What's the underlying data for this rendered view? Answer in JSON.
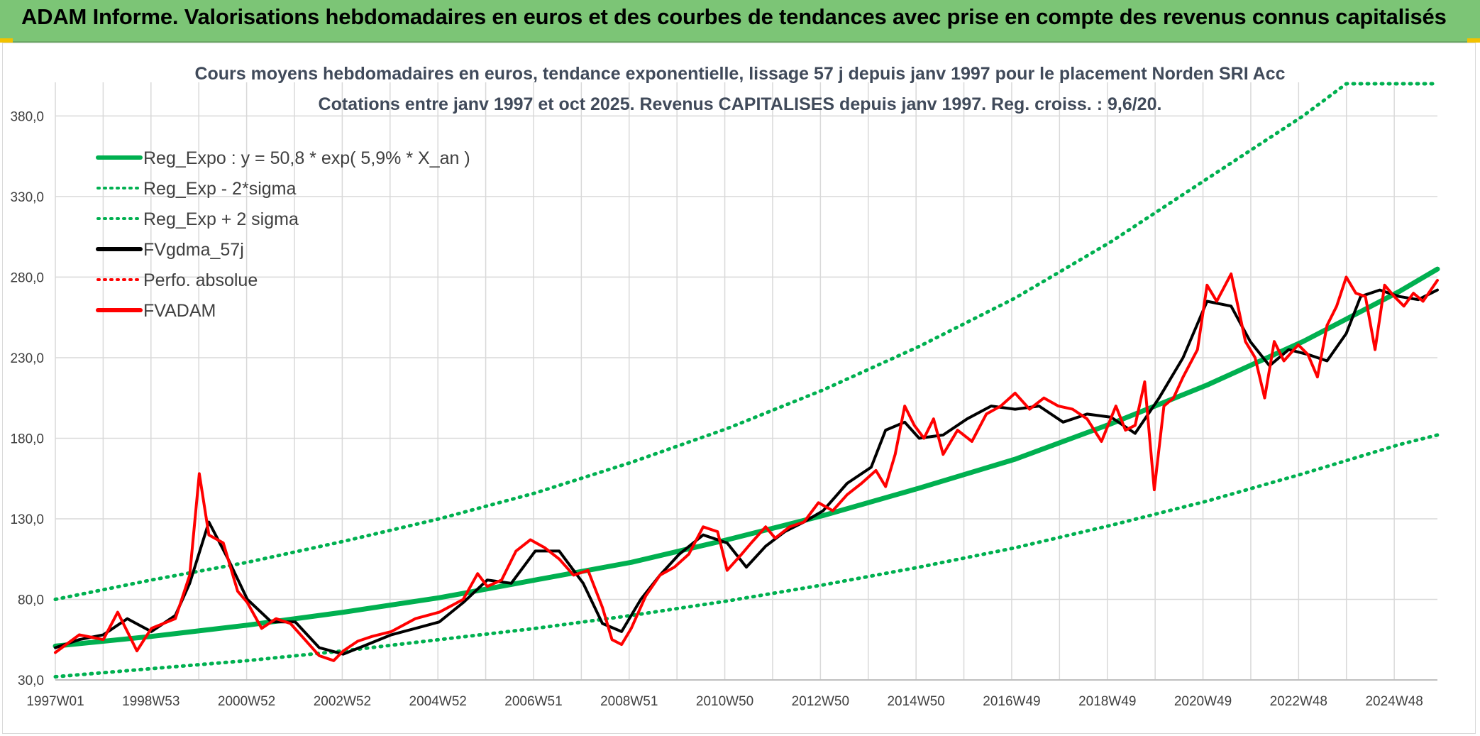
{
  "banner": {
    "title": "ADAM Informe. Valorisations hebdomadaires en euros et des courbes de tendances avec prise en compte des revenus connus capitalisés"
  },
  "colors": {
    "banner_bg": "#7cc576",
    "regression_green": "#00b050",
    "series_black": "#000000",
    "series_red": "#ff0000",
    "grid": "#d9d9d9"
  },
  "chart_data": {
    "type": "line",
    "title": "Cours moyens hebdomadaires en euros, tendance exponentielle, lissage 57 j depuis janv 1997 pour le placement Norden SRI Acc",
    "subtitle": "Cotations entre janv 1997 et oct 2025. Revenus CAPITALISES depuis janv 1997. Reg. croiss. : 9,6/20.",
    "x_ticks": [
      "1997W01",
      "1998W53",
      "2000W52",
      "2002W52",
      "2004W52",
      "2006W51",
      "2008W51",
      "2010W50",
      "2012W50",
      "2014W50",
      "2016W49",
      "2018W49",
      "2020W49",
      "2022W48",
      "2024W48"
    ],
    "y_ticks": [
      "30,0",
      "80,0",
      "130,0",
      "180,0",
      "230,0",
      "280,0",
      "330,0",
      "380,0"
    ],
    "ylim": [
      30,
      400
    ],
    "xlim": [
      1997.0,
      2025.8
    ],
    "grid": true,
    "legend_position": "top-left",
    "legend": [
      {
        "label": "Reg_Expo : y = 50,8 * exp( 5,9% *  X_an )",
        "color": "#00b050",
        "style": "solid"
      },
      {
        "label": "Reg_Exp - 2*sigma",
        "color": "#00b050",
        "style": "dotted"
      },
      {
        "label": "Reg_Exp + 2 sigma",
        "color": "#00b050",
        "style": "dotted"
      },
      {
        "label": "FVgdma_57j",
        "color": "#000000",
        "style": "solid"
      },
      {
        "label": "Perfo. absolue",
        "color": "#ff0000",
        "style": "dotted"
      },
      {
        "label": "FVADAM",
        "color": "#ff0000",
        "style": "solid"
      }
    ],
    "series": [
      {
        "name": "Reg_Expo : y = 50,8 * exp( 5,9% *  X_an )",
        "x": [
          1997.0,
          1999.0,
          2001.0,
          2003.0,
          2005.0,
          2007.0,
          2009.0,
          2011.0,
          2013.0,
          2015.0,
          2017.0,
          2019.0,
          2021.0,
          2023.0,
          2025.0,
          2025.8
        ],
        "values": [
          51,
          57,
          64,
          72,
          81,
          92,
          103,
          117,
          132,
          149,
          167,
          189,
          213,
          240,
          271,
          285
        ]
      },
      {
        "name": "Reg_Exp - 2*sigma",
        "x": [
          1997.0,
          1999.0,
          2001.0,
          2003.0,
          2005.0,
          2007.0,
          2009.0,
          2011.0,
          2013.0,
          2015.0,
          2017.0,
          2019.0,
          2021.0,
          2023.0,
          2025.0,
          2025.8
        ],
        "values": [
          32,
          37,
          42,
          48,
          55,
          62,
          70,
          79,
          89,
          100,
          112,
          126,
          141,
          158,
          176,
          182
        ]
      },
      {
        "name": "Reg_Exp + 2 sigma",
        "x": [
          1997.0,
          1999.0,
          2001.0,
          2003.0,
          2005.0,
          2007.0,
          2009.0,
          2011.0,
          2013.0,
          2015.0,
          2017.0,
          2019.0,
          2021.0,
          2023.0,
          2023.9,
          2025.8
        ],
        "values": [
          80,
          92,
          103,
          116,
          130,
          146,
          165,
          186,
          210,
          237,
          267,
          302,
          341,
          380,
          400,
          400
        ]
      },
      {
        "name": "FVgdma_57j",
        "x": [
          1997.0,
          1997.5,
          1998.0,
          1998.5,
          1999.0,
          1999.5,
          1999.8,
          2000.2,
          2000.6,
          2001.0,
          2001.5,
          2002.0,
          2002.5,
          2003.0,
          2003.5,
          2004.0,
          2004.5,
          2005.0,
          2005.5,
          2006.0,
          2006.5,
          2007.0,
          2007.5,
          2008.0,
          2008.4,
          2008.8,
          2009.2,
          2009.6,
          2010.0,
          2010.5,
          2011.0,
          2011.4,
          2011.8,
          2012.2,
          2012.6,
          2013.0,
          2013.5,
          2014.0,
          2014.3,
          2014.7,
          2015.0,
          2015.5,
          2016.0,
          2016.5,
          2017.0,
          2017.5,
          2018.0,
          2018.5,
          2019.0,
          2019.5,
          2020.0,
          2020.5,
          2021.0,
          2021.5,
          2021.9,
          2022.3,
          2022.7,
          2023.1,
          2023.5,
          2023.9,
          2024.2,
          2024.6,
          2025.0,
          2025.4,
          2025.8
        ],
        "values": [
          50,
          55,
          58,
          68,
          60,
          70,
          90,
          128,
          105,
          80,
          66,
          66,
          50,
          46,
          52,
          58,
          62,
          66,
          78,
          92,
          90,
          110,
          110,
          90,
          65,
          60,
          80,
          95,
          108,
          120,
          115,
          100,
          113,
          122,
          128,
          135,
          152,
          162,
          185,
          190,
          180,
          182,
          192,
          200,
          198,
          200,
          190,
          195,
          193,
          183,
          205,
          230,
          265,
          262,
          240,
          225,
          235,
          232,
          228,
          245,
          268,
          272,
          268,
          266,
          272
        ]
      },
      {
        "name": "FVADAM",
        "x": [
          1997.0,
          1997.5,
          1998.0,
          1998.3,
          1998.5,
          1998.7,
          1999.0,
          1999.5,
          1999.8,
          2000.0,
          2000.2,
          2000.5,
          2000.8,
          2001.0,
          2001.3,
          2001.6,
          2001.9,
          2002.2,
          2002.5,
          2002.8,
          2003.0,
          2003.3,
          2003.6,
          2004.0,
          2004.5,
          2005.0,
          2005.5,
          2005.8,
          2006.0,
          2006.3,
          2006.6,
          2006.9,
          2007.2,
          2007.5,
          2007.8,
          2008.1,
          2008.4,
          2008.6,
          2008.8,
          2009.0,
          2009.3,
          2009.6,
          2009.9,
          2010.2,
          2010.5,
          2010.8,
          2011.0,
          2011.3,
          2011.5,
          2011.8,
          2012.0,
          2012.3,
          2012.6,
          2012.9,
          2013.2,
          2013.5,
          2013.8,
          2014.1,
          2014.3,
          2014.5,
          2014.7,
          2014.9,
          2015.1,
          2015.3,
          2015.5,
          2015.8,
          2016.1,
          2016.4,
          2016.7,
          2017.0,
          2017.3,
          2017.6,
          2017.9,
          2018.2,
          2018.5,
          2018.8,
          2019.1,
          2019.3,
          2019.5,
          2019.7,
          2019.9,
          2020.1,
          2020.3,
          2020.5,
          2020.8,
          2021.0,
          2021.2,
          2021.5,
          2021.8,
          2022.0,
          2022.2,
          2022.4,
          2022.6,
          2022.9,
          2023.1,
          2023.3,
          2023.5,
          2023.7,
          2023.9,
          2024.1,
          2024.3,
          2024.5,
          2024.7,
          2024.9,
          2025.1,
          2025.3,
          2025.5,
          2025.8
        ],
        "values": [
          47,
          58,
          55,
          72,
          60,
          48,
          62,
          68,
          95,
          158,
          120,
          115,
          85,
          78,
          62,
          68,
          65,
          55,
          45,
          42,
          48,
          54,
          57,
          60,
          68,
          72,
          80,
          96,
          88,
          92,
          110,
          117,
          112,
          105,
          95,
          98,
          75,
          55,
          52,
          62,
          82,
          95,
          100,
          108,
          125,
          122,
          98,
          108,
          115,
          125,
          118,
          125,
          128,
          140,
          135,
          145,
          152,
          160,
          150,
          170,
          200,
          188,
          180,
          192,
          170,
          185,
          178,
          195,
          200,
          208,
          198,
          205,
          200,
          198,
          192,
          178,
          200,
          185,
          188,
          215,
          148,
          200,
          205,
          218,
          235,
          275,
          265,
          282,
          240,
          230,
          205,
          240,
          228,
          238,
          232,
          218,
          250,
          262,
          280,
          270,
          268,
          235,
          275,
          268,
          262,
          270,
          265,
          278
        ]
      }
    ]
  }
}
